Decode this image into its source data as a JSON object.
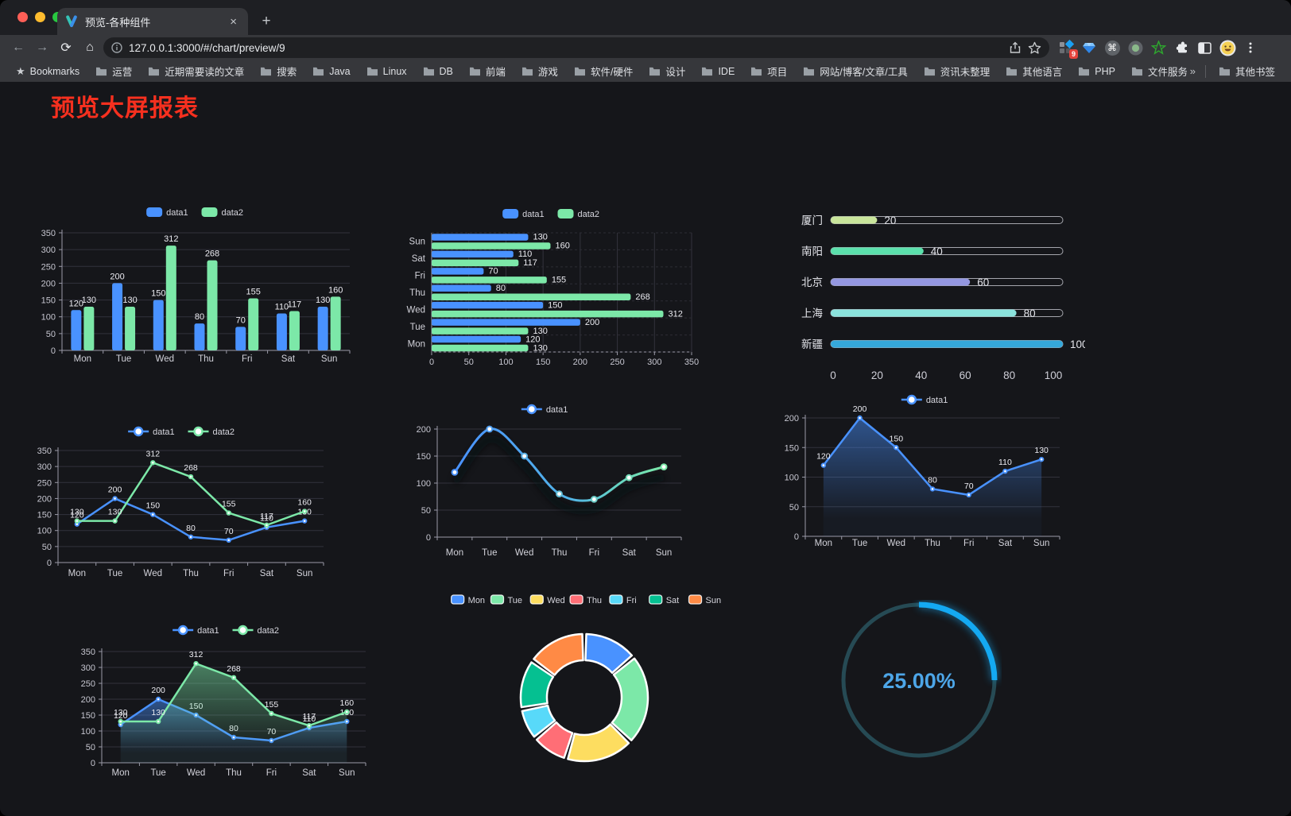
{
  "browser": {
    "tab": {
      "title": "预览-各种组件",
      "close_glyph": "×",
      "new_tab_glyph": "+"
    },
    "address_bar": {
      "url": "127.0.0.1:3000/#/chart/preview/9"
    },
    "extensions_badge": "9",
    "bookmarks": {
      "root_label": "Bookmarks",
      "folders": [
        "运营",
        "近期需要读的文章",
        "搜索",
        "Java",
        "Linux",
        "DB",
        "前端",
        "游戏",
        "软件/硬件",
        "设计",
        "IDE",
        "项目",
        "网站/博客/文章/工具",
        "资讯未整理",
        "其他语言",
        "PHP",
        "文件服务器"
      ],
      "overflow_glyph": "»",
      "other_label": "其他书签"
    }
  },
  "page": {
    "title": "预览大屏报表",
    "title_color": "#f6301f",
    "background": "#15161a"
  },
  "theme": {
    "blue": "#4992ff",
    "green": "#7CE8A8",
    "axis": "#9a9aa8",
    "grid": "#32323c",
    "tick_text": "#c6c6d0",
    "value_label": "#ececf2",
    "legend_text": "#d6d6de"
  },
  "chart_data": [
    {
      "id": "grouped-bar",
      "type": "bar",
      "legend": [
        "data1",
        "data2"
      ],
      "categories": [
        "Mon",
        "Tue",
        "Wed",
        "Thu",
        "Fri",
        "Sat",
        "Sun"
      ],
      "series": [
        {
          "name": "data1",
          "color": "#4992ff",
          "values": [
            120,
            200,
            150,
            80,
            70,
            110,
            130
          ]
        },
        {
          "name": "data2",
          "color": "#7CE8A8",
          "values": [
            130,
            130,
            312,
            268,
            155,
            117,
            160
          ]
        }
      ],
      "ylim": [
        0,
        350
      ],
      "ystep": 50
    },
    {
      "id": "horizontal-bar",
      "type": "bar",
      "orient": "horizontal",
      "legend": [
        "data1",
        "data2"
      ],
      "categories_top_to_bottom": [
        "Sun",
        "Sat",
        "Fri",
        "Thu",
        "Wed",
        "Tue",
        "Mon"
      ],
      "series": [
        {
          "name": "data1",
          "color": "#4992ff",
          "values": [
            130,
            110,
            70,
            80,
            150,
            200,
            120
          ]
        },
        {
          "name": "data2",
          "color": "#7CE8A8",
          "values": [
            160,
            117,
            155,
            268,
            312,
            130,
            130
          ]
        }
      ],
      "xlim": [
        0,
        350
      ],
      "xstep": 50
    },
    {
      "id": "city-progress",
      "type": "bar",
      "orient": "horizontal",
      "style": "progress",
      "items": [
        {
          "label": "厦门",
          "value": 20,
          "color": "#C9E59B"
        },
        {
          "label": "南阳",
          "value": 40,
          "color": "#5BE0AC"
        },
        {
          "label": "北京",
          "value": 60,
          "color": "#9497E1"
        },
        {
          "label": "上海",
          "value": 80,
          "color": "#8BE3DD"
        },
        {
          "label": "新疆",
          "value": 100,
          "color": "#35A8DB"
        }
      ],
      "xlim": [
        0,
        100
      ],
      "xticks": [
        0,
        20,
        40,
        60,
        80,
        100
      ]
    },
    {
      "id": "line-two-series",
      "type": "line",
      "legend": [
        "data1",
        "data2"
      ],
      "categories": [
        "Mon",
        "Tue",
        "Wed",
        "Thu",
        "Fri",
        "Sat",
        "Sun"
      ],
      "series": [
        {
          "name": "data1",
          "color": "#4992ff",
          "values": [
            120,
            200,
            150,
            80,
            70,
            110,
            130
          ]
        },
        {
          "name": "data2",
          "color": "#7CE8A8",
          "values": [
            130,
            130,
            312,
            268,
            155,
            117,
            160
          ]
        }
      ],
      "ylim": [
        0,
        350
      ],
      "ystep": 50,
      "labels": true
    },
    {
      "id": "gradient-line",
      "type": "line",
      "variant": "gradient-smooth",
      "legend": [
        "data1"
      ],
      "categories": [
        "Mon",
        "Tue",
        "Wed",
        "Thu",
        "Fri",
        "Sat",
        "Sun"
      ],
      "series": [
        {
          "name": "data1",
          "color_start": "#4992ff",
          "color_end": "#7CE8A8",
          "values": [
            120,
            200,
            150,
            80,
            70,
            110,
            130
          ]
        }
      ],
      "ylim": [
        0,
        200
      ],
      "ystep": 50,
      "labels": false
    },
    {
      "id": "area-line",
      "type": "area",
      "legend": [
        "data1"
      ],
      "categories": [
        "Mon",
        "Tue",
        "Wed",
        "Thu",
        "Fri",
        "Sat",
        "Sun"
      ],
      "series": [
        {
          "name": "data1",
          "color": "#4992ff",
          "values": [
            120,
            200,
            150,
            80,
            70,
            110,
            130
          ]
        }
      ],
      "ylim": [
        0,
        200
      ],
      "ystep": 50,
      "labels": true
    },
    {
      "id": "area-two-series",
      "type": "area",
      "legend": [
        "data1",
        "data2"
      ],
      "categories": [
        "Mon",
        "Tue",
        "Wed",
        "Thu",
        "Fri",
        "Sat",
        "Sun"
      ],
      "series": [
        {
          "name": "data1",
          "color": "#4992ff",
          "values": [
            120,
            200,
            150,
            80,
            70,
            110,
            130
          ]
        },
        {
          "name": "data2",
          "color": "#7CE8A8",
          "values": [
            130,
            130,
            312,
            268,
            155,
            117,
            160
          ]
        }
      ],
      "ylim": [
        0,
        350
      ],
      "ystep": 50,
      "labels": true
    },
    {
      "id": "donut",
      "type": "pie",
      "shape": "donut",
      "legend": [
        "Mon",
        "Tue",
        "Wed",
        "Thu",
        "Fri",
        "Sat",
        "Sun"
      ],
      "items": [
        {
          "name": "Mon",
          "value": 120,
          "color": "#4992ff"
        },
        {
          "name": "Tue",
          "value": 200,
          "color": "#7CE8A8"
        },
        {
          "name": "Wed",
          "value": 150,
          "color": "#fddd60"
        },
        {
          "name": "Thu",
          "value": 80,
          "color": "#ff6e76"
        },
        {
          "name": "Fri",
          "value": 70,
          "color": "#58d9f9"
        },
        {
          "name": "Sat",
          "value": 110,
          "color": "#05c091"
        },
        {
          "name": "Sun",
          "value": 130,
          "color": "#ff8a45"
        }
      ]
    },
    {
      "id": "gauge",
      "type": "gauge",
      "value": 25,
      "max": 100,
      "label": "25.00%",
      "arc_color": "#14a9f2",
      "track_color": "#264a54",
      "text_color": "#4da6e8"
    }
  ]
}
